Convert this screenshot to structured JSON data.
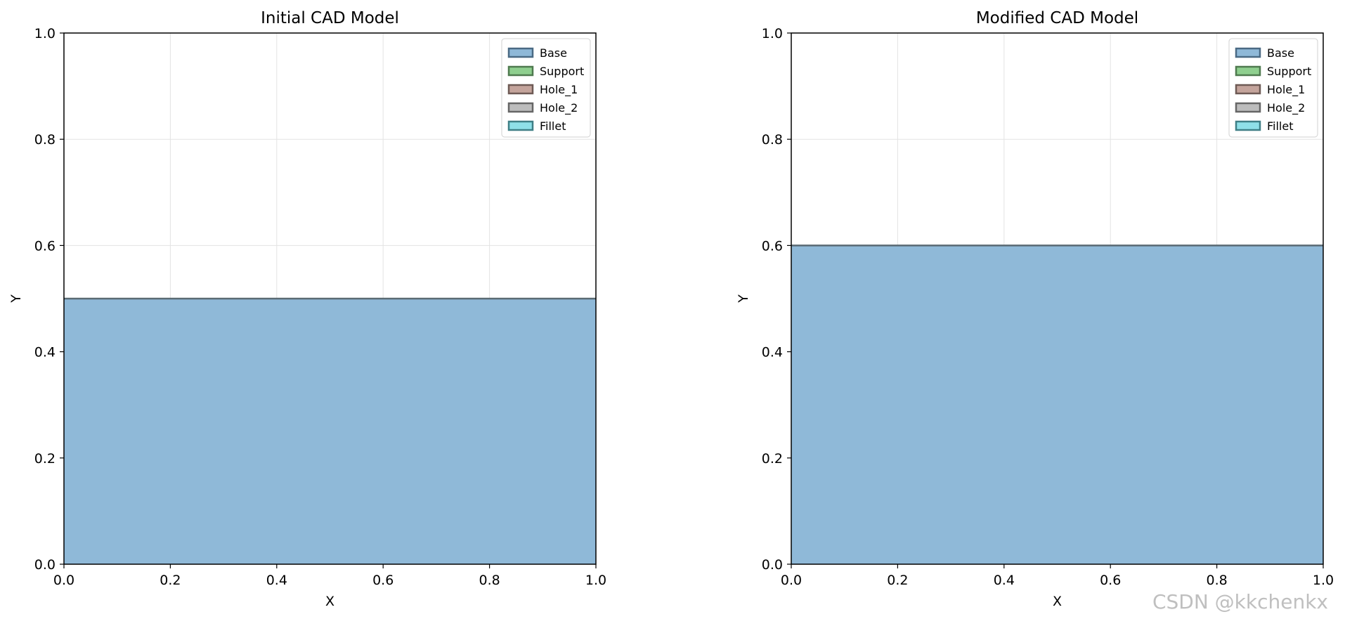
{
  "chart_data": [
    {
      "type": "area",
      "title": "Initial CAD Model",
      "xlabel": "X",
      "ylabel": "Y",
      "xlim": [
        0,
        1
      ],
      "ylim": [
        0,
        1
      ],
      "xticks": [
        "0.0",
        "0.2",
        "0.4",
        "0.6",
        "0.8",
        "1.0"
      ],
      "yticks": [
        "0.0",
        "0.2",
        "0.4",
        "0.6",
        "0.8",
        "1.0"
      ],
      "grid": true,
      "legend_position": "top-right",
      "legend": [
        "Base",
        "Support",
        "Hole_1",
        "Hole_2",
        "Fillet"
      ],
      "shapes": [
        {
          "name": "Base",
          "x": [
            0,
            1
          ],
          "y": [
            0,
            0.5
          ]
        }
      ]
    },
    {
      "type": "area",
      "title": "Modified CAD Model",
      "xlabel": "X",
      "ylabel": "Y",
      "xlim": [
        0,
        1
      ],
      "ylim": [
        0,
        1
      ],
      "xticks": [
        "0.0",
        "0.2",
        "0.4",
        "0.6",
        "0.8",
        "1.0"
      ],
      "yticks": [
        "0.0",
        "0.2",
        "0.4",
        "0.6",
        "0.8",
        "1.0"
      ],
      "grid": true,
      "legend_position": "top-right",
      "legend": [
        "Base",
        "Support",
        "Hole_1",
        "Hole_2",
        "Fillet"
      ],
      "shapes": [
        {
          "name": "Base",
          "x": [
            0,
            1
          ],
          "y": [
            0,
            0.6
          ]
        }
      ]
    }
  ],
  "legend_colors": {
    "Base": "#8fb9d8",
    "Support": "#8fcf8f",
    "Hole_1": "#c4a49c",
    "Hole_2": "#bdbdbd",
    "Fillet": "#8fe0e8"
  },
  "fill_color": "#8fb9d8",
  "watermark": "CSDN @kkchenkx"
}
